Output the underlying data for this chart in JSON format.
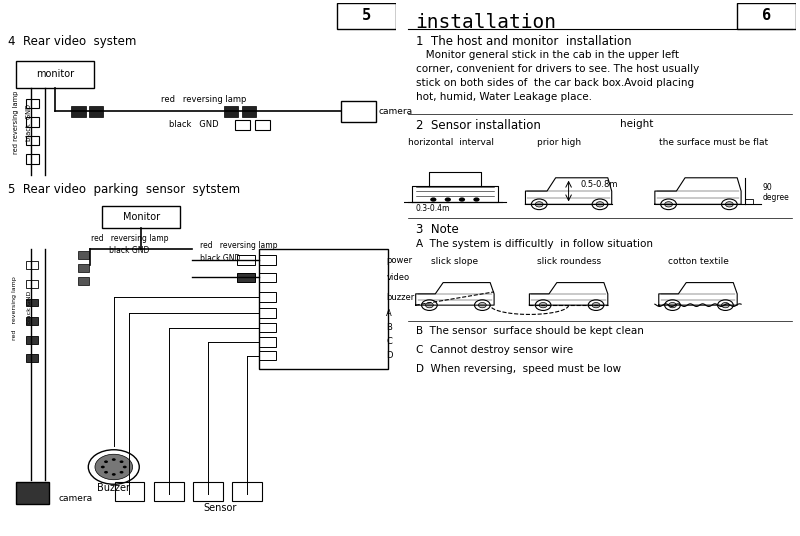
{
  "left_panel": {
    "title4": "4  Rear video  system",
    "title5": "5  Rear video  parking  sensor  sytstem",
    "page_num": "5"
  },
  "right_panel": {
    "title": "installation",
    "page_num": "6",
    "section1_title": "1  The host and monitor  installation",
    "section1_text": "   Monitor general stick in the cab in the upper left\ncorner, convenient for drivers to see. The host usually\nstick on both sides of  the car back box.Avoid placing\nhot, humid, Water Leakage place.",
    "section2_title": "2  Sensor installation",
    "section2_height": "height",
    "labels_row": [
      "horizontal  interval",
      "prior high",
      "the surface must be flat"
    ],
    "section3_title": "3  Note",
    "section3_subtitleA": "A  The system is difficultly  in follow situation",
    "labels_bottom": [
      "slick slope",
      "slick roundess",
      "cotton textile"
    ],
    "section3_B": "B  The sensor  surface should be kept clean",
    "section3_C": "C  Cannot destroy sensor wire",
    "section3_D": "D  When reversing,  speed must be low"
  }
}
